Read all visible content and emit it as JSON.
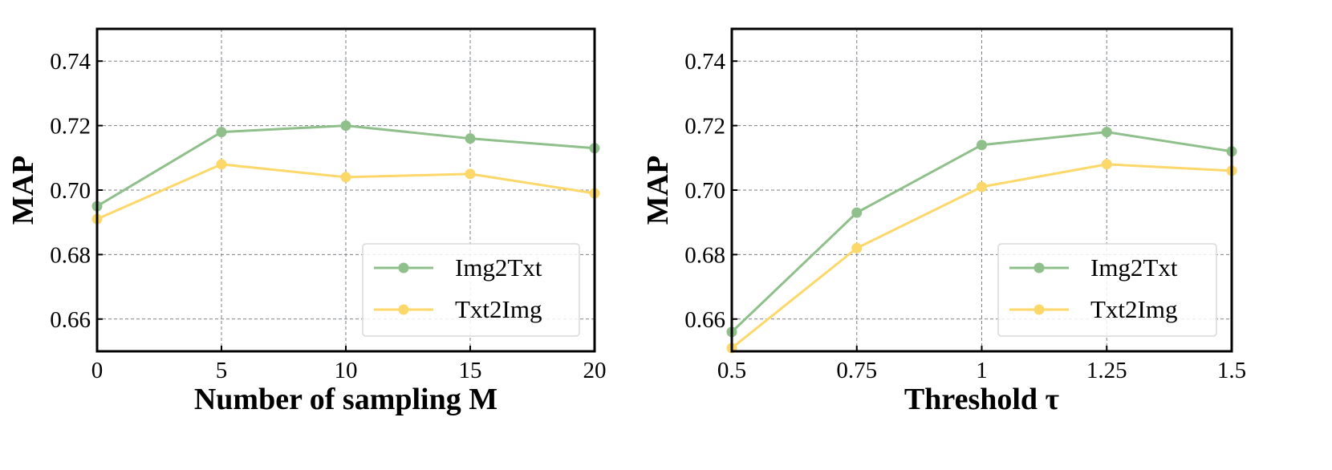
{
  "colors": {
    "img2txt": "#8fbf8a",
    "txt2img": "#fcd76a"
  },
  "chart_data": [
    {
      "type": "line",
      "xlabel": "Number of sampling M",
      "ylabel": "MAP",
      "x": [
        0,
        5,
        10,
        15,
        20
      ],
      "x_tick_labels": [
        "0",
        "5",
        "10",
        "15",
        "20"
      ],
      "xlim": [
        0,
        20
      ],
      "ylim": [
        0.65,
        0.75
      ],
      "y_ticks": [
        0.66,
        0.68,
        0.7,
        0.72,
        0.74
      ],
      "y_tick_labels": [
        "0.66",
        "0.68",
        "0.70",
        "0.72",
        "0.74"
      ],
      "grid": true,
      "legend": "bottom-right",
      "series": [
        {
          "name": "Img2Txt",
          "values": [
            0.695,
            0.718,
            0.72,
            0.716,
            0.713
          ]
        },
        {
          "name": "Txt2Img",
          "values": [
            0.691,
            0.708,
            0.704,
            0.705,
            0.699
          ]
        }
      ]
    },
    {
      "type": "line",
      "xlabel": "Threshold τ",
      "ylabel": "MAP",
      "x": [
        0.5,
        0.75,
        1,
        1.25,
        1.5
      ],
      "x_tick_labels": [
        "0.5",
        "0.75",
        "1",
        "1.25",
        "1.5"
      ],
      "xlim": [
        0.5,
        1.5
      ],
      "ylim": [
        0.65,
        0.75
      ],
      "y_ticks": [
        0.66,
        0.68,
        0.7,
        0.72,
        0.74
      ],
      "y_tick_labels": [
        "0.66",
        "0.68",
        "0.70",
        "0.72",
        "0.74"
      ],
      "grid": true,
      "legend": "bottom-right",
      "series": [
        {
          "name": "Img2Txt",
          "values": [
            0.656,
            0.693,
            0.714,
            0.718,
            0.712
          ]
        },
        {
          "name": "Txt2Img",
          "values": [
            0.651,
            0.682,
            0.701,
            0.708,
            0.706
          ]
        }
      ]
    }
  ]
}
